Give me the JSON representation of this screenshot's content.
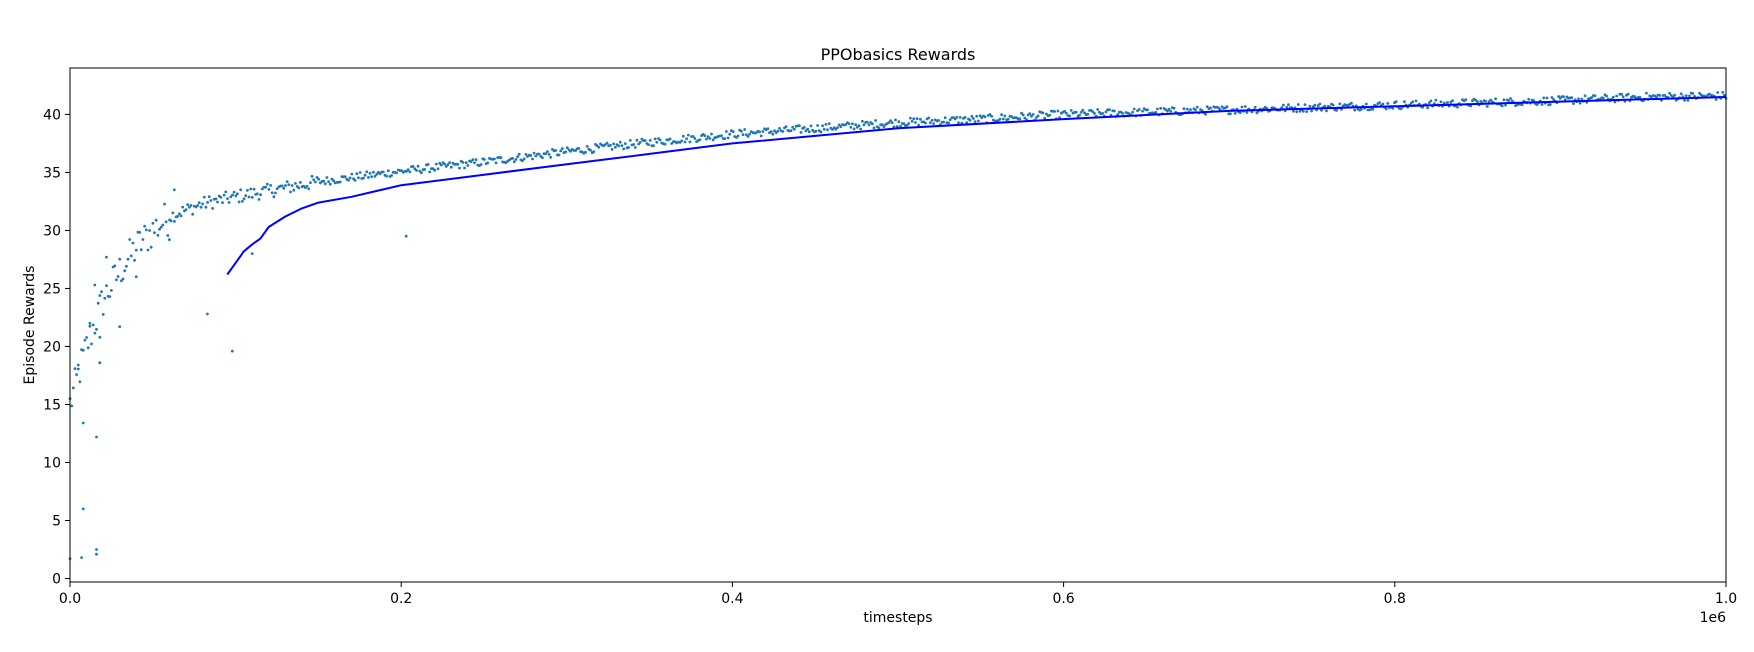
{
  "chart_data": {
    "type": "scatter",
    "title": "PPObasics Rewards",
    "xlabel": "timesteps",
    "ylabel": "Episode Rewards",
    "x_offset_label": "1e6",
    "xlim": [
      0,
      1.0
    ],
    "ylim": [
      -0.3,
      44.0
    ],
    "x_ticks": [
      0.0,
      0.2,
      0.4,
      0.6,
      0.8,
      1.0
    ],
    "x_tick_labels": [
      "0.0",
      "0.2",
      "0.4",
      "0.6",
      "0.8",
      "1.0"
    ],
    "y_ticks": [
      0,
      5,
      10,
      15,
      20,
      25,
      30,
      35,
      40
    ],
    "y_tick_labels": [
      "0",
      "5",
      "10",
      "15",
      "20",
      "25",
      "30",
      "35",
      "40"
    ],
    "grid": false,
    "series": [
      {
        "kind": "scatter",
        "color": "#1f77b4",
        "x_unit": "1e6 timesteps",
        "x_start": 0.0,
        "x_end": 1.0,
        "count": 1000,
        "trend_anchors": [
          [
            0.0,
            15
          ],
          [
            0.01,
            20
          ],
          [
            0.02,
            24
          ],
          [
            0.03,
            26.5
          ],
          [
            0.04,
            28.5
          ],
          [
            0.05,
            30
          ],
          [
            0.06,
            31.2
          ],
          [
            0.08,
            32.3
          ],
          [
            0.1,
            32.9
          ],
          [
            0.15,
            34.2
          ],
          [
            0.2,
            35.1
          ],
          [
            0.25,
            35.9
          ],
          [
            0.3,
            36.8
          ],
          [
            0.35,
            37.6
          ],
          [
            0.4,
            38.3
          ],
          [
            0.45,
            38.8
          ],
          [
            0.5,
            39.3
          ],
          [
            0.55,
            39.6
          ],
          [
            0.6,
            40.0
          ],
          [
            0.65,
            40.2
          ],
          [
            0.7,
            40.4
          ],
          [
            0.75,
            40.6
          ],
          [
            0.8,
            40.8
          ],
          [
            0.85,
            41.0
          ],
          [
            0.9,
            41.2
          ],
          [
            0.95,
            41.5
          ],
          [
            1.0,
            41.6
          ]
        ],
        "outliers": [
          [
            0.0,
            1.7
          ],
          [
            0.007,
            1.8
          ],
          [
            0.008,
            6.0
          ],
          [
            0.016,
            2.5
          ],
          [
            0.016,
            2.1
          ],
          [
            0.016,
            12.2
          ],
          [
            0.018,
            18.6
          ],
          [
            0.008,
            13.4
          ],
          [
            0.083,
            22.8
          ],
          [
            0.098,
            19.6
          ],
          [
            0.11,
            28.0
          ],
          [
            0.203,
            29.5
          ],
          [
            0.063,
            33.5
          ],
          [
            0.012,
            22.0
          ],
          [
            0.015,
            25.3
          ],
          [
            0.022,
            27.7
          ],
          [
            0.03,
            21.7
          ],
          [
            0.005,
            18.4
          ],
          [
            0.018,
            20.8
          ],
          [
            0.04,
            26.0
          ],
          [
            0.06,
            29.2
          ]
        ]
      },
      {
        "kind": "line",
        "color": "#0000ff",
        "x": [
          0.095,
          0.1,
          0.105,
          0.11,
          0.115,
          0.12,
          0.13,
          0.14,
          0.15,
          0.17,
          0.2,
          0.25,
          0.3,
          0.35,
          0.4,
          0.5,
          0.6,
          0.7,
          0.8,
          0.9,
          1.0
        ],
        "y": [
          26.2,
          27.2,
          28.2,
          28.8,
          29.3,
          30.3,
          31.2,
          31.9,
          32.4,
          32.9,
          33.9,
          34.8,
          35.7,
          36.6,
          37.5,
          38.8,
          39.6,
          40.3,
          40.7,
          41.1,
          41.5
        ]
      }
    ]
  }
}
